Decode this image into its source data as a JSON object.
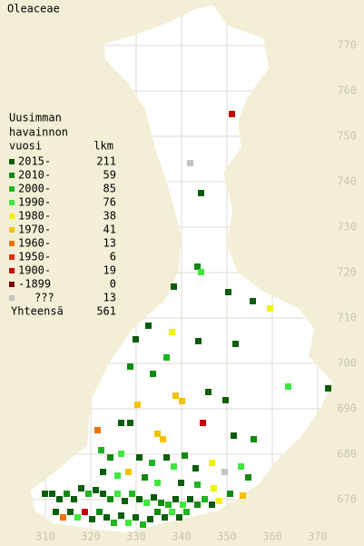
{
  "title": "Oleaceae",
  "legend": {
    "heading": [
      "Uusimman",
      "havainnon",
      "vuosi"
    ],
    "count_heading": "lkm",
    "rows": [
      {
        "label": "2015-",
        "count": 211,
        "color": "#0b5e0b"
      },
      {
        "label": "2010-",
        "count": 59,
        "color": "#128a12"
      },
      {
        "label": "2000-",
        "count": 85,
        "color": "#1fb51f"
      },
      {
        "label": "1990-",
        "count": 76,
        "color": "#3ee83e"
      },
      {
        "label": "1980-",
        "count": 38,
        "color": "#f2f200"
      },
      {
        "label": "1970-",
        "count": 41,
        "color": "#f2c200"
      },
      {
        "label": "1960-",
        "count": 13,
        "color": "#f27000"
      },
      {
        "label": "1950-",
        "count": 6,
        "color": "#f02a00"
      },
      {
        "label": "1900-",
        "count": 19,
        "color": "#c80000"
      },
      {
        "label": "-1899",
        "count": 0,
        "color": "#7a0000"
      },
      {
        "label": "???",
        "count": 13,
        "color": "#c4c4c4"
      }
    ],
    "total_label": "Yhteensä",
    "total": 561
  },
  "axes": {
    "xticks": [
      310,
      320,
      330,
      340,
      350,
      360,
      370
    ],
    "yticks": [
      670,
      680,
      690,
      700,
      710,
      720,
      730,
      740,
      750,
      760,
      770
    ]
  }
}
